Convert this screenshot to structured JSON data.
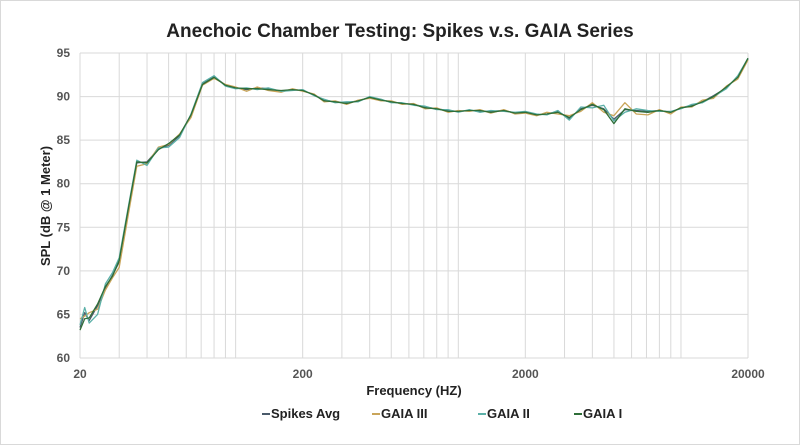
{
  "chart_data": {
    "type": "line",
    "title": "Anechoic Chamber Testing: Spikes v.s. GAIA Series",
    "xlabel": "Frequency (HZ)",
    "ylabel": "SPL (dB @ 1 Meter)",
    "x_scale": "log",
    "xlim": [
      20,
      20000
    ],
    "ylim": [
      60,
      95
    ],
    "x_ticks": [
      20,
      200,
      2000,
      20000
    ],
    "x_tick_labels": [
      "20",
      "200",
      "2000",
      "20000"
    ],
    "y_ticks": [
      60,
      65,
      70,
      75,
      80,
      85,
      90,
      95
    ],
    "y_tick_labels": [
      "60",
      "65",
      "70",
      "75",
      "80",
      "85",
      "90",
      "95"
    ],
    "grid": true,
    "legend_position": "bottom",
    "x": [
      20,
      21,
      22,
      24,
      26,
      28,
      30,
      33,
      36,
      40,
      45,
      50,
      56,
      63,
      71,
      80,
      90,
      100,
      112,
      125,
      140,
      160,
      180,
      200,
      225,
      250,
      280,
      315,
      355,
      400,
      450,
      500,
      560,
      630,
      710,
      800,
      900,
      1000,
      1120,
      1250,
      1400,
      1600,
      1800,
      2000,
      2250,
      2500,
      2800,
      3150,
      3550,
      4000,
      4500,
      5000,
      5600,
      6300,
      7100,
      8000,
      9000,
      10000,
      11200,
      12500,
      14000,
      16000,
      18000,
      20000
    ],
    "series": [
      {
        "name": "Spikes Avg",
        "color": "#4a5a6a",
        "values": [
          63.5,
          65.2,
          64.3,
          66.0,
          68.0,
          69.5,
          71.0,
          77.0,
          82.4,
          82.5,
          84.0,
          84.4,
          85.5,
          87.8,
          91.5,
          92.3,
          91.3,
          91.0,
          90.8,
          91.0,
          90.9,
          90.6,
          90.8,
          90.7,
          90.2,
          89.6,
          89.4,
          89.3,
          89.5,
          89.9,
          89.6,
          89.4,
          89.2,
          89.1,
          88.8,
          88.6,
          88.4,
          88.3,
          88.4,
          88.3,
          88.3,
          88.4,
          88.1,
          88.2,
          87.9,
          88.0,
          88.3,
          87.5,
          88.6,
          89.0,
          88.6,
          87.4,
          88.5,
          88.4,
          88.3,
          88.4,
          88.2,
          88.7,
          89.0,
          89.4,
          90.1,
          91.0,
          92.3,
          94.3
        ]
      },
      {
        "name": "GAIA III",
        "color": "#c9a55a",
        "values": [
          64.5,
          64.8,
          65.2,
          65.6,
          67.8,
          69.2,
          70.4,
          76.5,
          82.0,
          82.3,
          84.2,
          84.5,
          85.7,
          87.6,
          91.3,
          92.1,
          91.4,
          91.1,
          90.6,
          91.1,
          90.7,
          90.5,
          90.9,
          90.6,
          90.3,
          89.4,
          89.5,
          89.1,
          89.6,
          89.8,
          89.5,
          89.5,
          89.1,
          89.2,
          88.6,
          88.7,
          88.2,
          88.4,
          88.3,
          88.5,
          88.1,
          88.5,
          88.0,
          88.1,
          87.8,
          88.2,
          88.0,
          87.8,
          88.3,
          89.3,
          88.2,
          87.8,
          89.3,
          88.0,
          87.9,
          88.5,
          88.0,
          88.8,
          88.8,
          89.6,
          89.8,
          91.2,
          92.0,
          94.2
        ]
      },
      {
        "name": "GAIA II",
        "color": "#5bb0a8",
        "values": [
          63.8,
          65.8,
          64.0,
          65.0,
          68.5,
          69.8,
          71.5,
          77.4,
          82.7,
          82.1,
          84.1,
          84.2,
          85.3,
          88.0,
          91.6,
          92.4,
          91.2,
          90.9,
          91.0,
          90.8,
          91.0,
          90.6,
          90.7,
          90.8,
          90.1,
          89.7,
          89.3,
          89.4,
          89.4,
          90.0,
          89.7,
          89.3,
          89.3,
          89.0,
          88.9,
          88.5,
          88.5,
          88.2,
          88.5,
          88.2,
          88.4,
          88.3,
          88.2,
          88.3,
          88.0,
          87.9,
          88.4,
          87.3,
          88.8,
          88.7,
          89.0,
          87.2,
          88.2,
          88.6,
          88.4,
          88.3,
          88.3,
          88.6,
          89.1,
          89.3,
          90.0,
          90.9,
          92.4,
          94.4
        ]
      },
      {
        "name": "GAIA I",
        "color": "#2e6e38",
        "values": [
          63.2,
          64.5,
          64.6,
          66.2,
          68.2,
          69.4,
          71.2,
          77.2,
          82.5,
          82.4,
          83.9,
          84.6,
          85.6,
          87.9,
          91.4,
          92.2,
          91.3,
          91.0,
          90.9,
          90.9,
          90.8,
          90.7,
          90.8,
          90.7,
          90.2,
          89.5,
          89.4,
          89.2,
          89.5,
          89.9,
          89.6,
          89.4,
          89.2,
          89.1,
          88.7,
          88.6,
          88.3,
          88.3,
          88.4,
          88.4,
          88.2,
          88.4,
          88.1,
          88.2,
          87.9,
          88.0,
          88.2,
          87.6,
          88.5,
          89.1,
          88.5,
          86.9,
          88.6,
          88.3,
          88.2,
          88.4,
          88.2,
          88.7,
          88.9,
          89.4,
          90.0,
          91.1,
          92.2,
          94.4
        ]
      }
    ]
  }
}
